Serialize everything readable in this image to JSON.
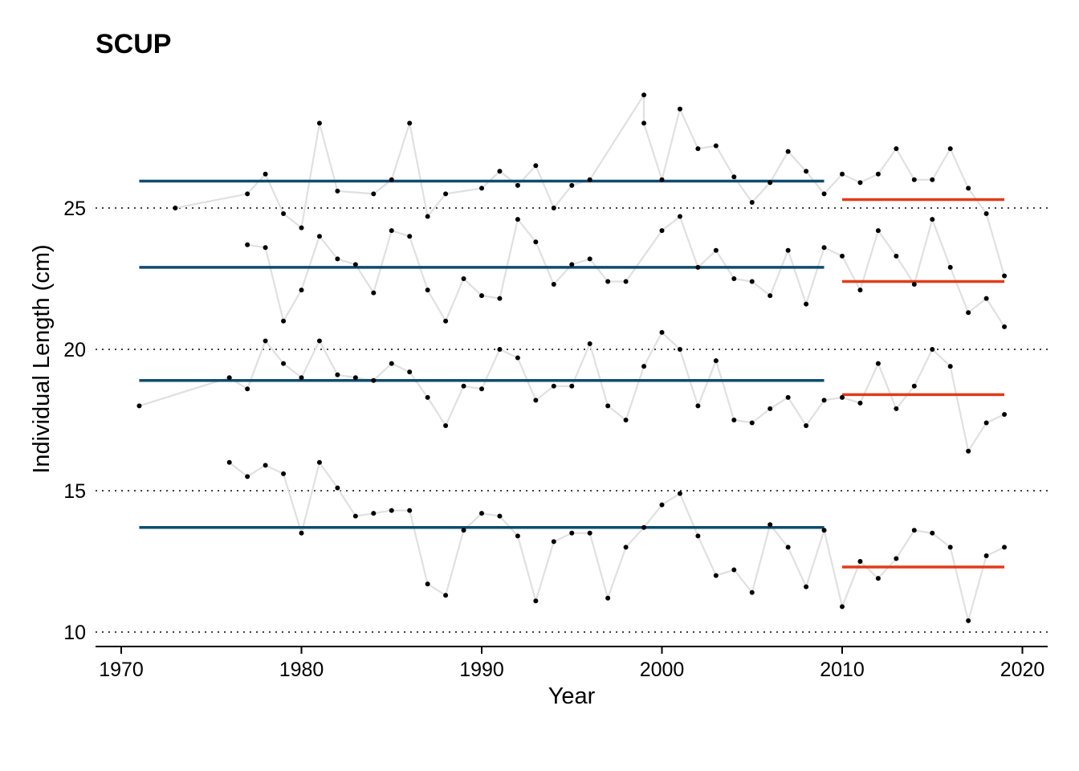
{
  "chart_data": {
    "type": "line",
    "title": "SCUP",
    "xlabel": "Year",
    "ylabel": "Individual Length (cm)",
    "xlim": [
      1968.5,
      2021.5
    ],
    "ylim": [
      9.5,
      29.5
    ],
    "x_ticks": [
      1970,
      1980,
      1990,
      2000,
      2010,
      2020
    ],
    "y_ticks": [
      10,
      15,
      20,
      25
    ],
    "grid": "horizontal dotted at y ticks",
    "colors": {
      "points": "#000000",
      "lines": "#e0e0e0",
      "early_mean": "#0f4c6e",
      "late_mean": "#e03c1b"
    },
    "series": [
      {
        "values": [
          [
            1973,
            25.0
          ],
          [
            1977,
            25.5
          ],
          [
            1978,
            26.2
          ],
          [
            1979,
            24.8
          ],
          [
            1980,
            24.3
          ],
          [
            1981,
            28.0
          ],
          [
            1982,
            25.6
          ],
          [
            1984,
            25.5
          ],
          [
            1985,
            26.0
          ],
          [
            1986,
            28.0
          ],
          [
            1987,
            24.7
          ],
          [
            1988,
            25.5
          ],
          [
            1990,
            25.7
          ],
          [
            1991,
            26.3
          ],
          [
            1992,
            25.8
          ],
          [
            1993,
            26.5
          ],
          [
            1994,
            25.0
          ],
          [
            1995,
            25.8
          ],
          [
            1996,
            26.0
          ],
          [
            1999,
            29.0
          ],
          [
            1999,
            28.0
          ],
          [
            2000,
            26.0
          ],
          [
            2001,
            28.5
          ],
          [
            2002,
            27.1
          ],
          [
            2003,
            27.2
          ],
          [
            2004,
            26.1
          ],
          [
            2005,
            25.2
          ],
          [
            2006,
            25.9
          ],
          [
            2007,
            27.0
          ],
          [
            2008,
            26.3
          ],
          [
            2009,
            25.5
          ],
          [
            2010,
            26.2
          ],
          [
            2011,
            25.9
          ],
          [
            2012,
            26.2
          ],
          [
            2013,
            27.1
          ],
          [
            2014,
            26.0
          ],
          [
            2015,
            26.0
          ],
          [
            2016,
            27.1
          ],
          [
            2017,
            25.7
          ],
          [
            2018,
            24.8
          ],
          [
            2019,
            22.6
          ]
        ],
        "means": [
          {
            "x_start": 1971,
            "x_end": 2009,
            "y": 25.95
          },
          {
            "x_start": 2010,
            "x_end": 2019,
            "y": 25.3
          }
        ]
      },
      {
        "values": [
          [
            1977,
            23.7
          ],
          [
            1978,
            23.6
          ],
          [
            1979,
            21.0
          ],
          [
            1980,
            22.1
          ],
          [
            1981,
            24.0
          ],
          [
            1982,
            23.2
          ],
          [
            1983,
            23.0
          ],
          [
            1984,
            22.0
          ],
          [
            1985,
            24.2
          ],
          [
            1986,
            24.0
          ],
          [
            1987,
            22.1
          ],
          [
            1988,
            21.0
          ],
          [
            1989,
            22.5
          ],
          [
            1990,
            21.9
          ],
          [
            1991,
            21.8
          ],
          [
            1992,
            24.6
          ],
          [
            1993,
            23.8
          ],
          [
            1994,
            22.3
          ],
          [
            1995,
            23.0
          ],
          [
            1996,
            23.2
          ],
          [
            1997,
            22.4
          ],
          [
            1998,
            22.4
          ],
          [
            2000,
            24.2
          ],
          [
            2001,
            24.7
          ],
          [
            2002,
            22.9
          ],
          [
            2003,
            23.5
          ],
          [
            2004,
            22.5
          ],
          [
            2005,
            22.4
          ],
          [
            2006,
            21.9
          ],
          [
            2007,
            23.5
          ],
          [
            2008,
            21.6
          ],
          [
            2009,
            23.6
          ],
          [
            2010,
            23.3
          ],
          [
            2011,
            22.1
          ],
          [
            2012,
            24.2
          ],
          [
            2013,
            23.3
          ],
          [
            2014,
            22.3
          ],
          [
            2015,
            24.6
          ],
          [
            2016,
            22.9
          ],
          [
            2017,
            21.3
          ],
          [
            2018,
            21.8
          ],
          [
            2019,
            20.8
          ]
        ],
        "means": [
          {
            "x_start": 1971,
            "x_end": 2009,
            "y": 22.9
          },
          {
            "x_start": 2010,
            "x_end": 2019,
            "y": 22.4
          }
        ]
      },
      {
        "values": [
          [
            1971,
            18.0
          ],
          [
            1976,
            19.0
          ],
          [
            1977,
            18.6
          ],
          [
            1978,
            20.3
          ],
          [
            1979,
            19.5
          ],
          [
            1980,
            19.0
          ],
          [
            1981,
            20.3
          ],
          [
            1982,
            19.1
          ],
          [
            1983,
            19.0
          ],
          [
            1984,
            18.9
          ],
          [
            1985,
            19.5
          ],
          [
            1986,
            19.2
          ],
          [
            1987,
            18.3
          ],
          [
            1988,
            17.3
          ],
          [
            1989,
            18.7
          ],
          [
            1990,
            18.6
          ],
          [
            1991,
            20.0
          ],
          [
            1992,
            19.7
          ],
          [
            1993,
            18.2
          ],
          [
            1994,
            18.7
          ],
          [
            1995,
            18.7
          ],
          [
            1996,
            20.2
          ],
          [
            1997,
            18.0
          ],
          [
            1998,
            17.5
          ],
          [
            1999,
            19.4
          ],
          [
            2000,
            20.6
          ],
          [
            2001,
            20.0
          ],
          [
            2002,
            18.0
          ],
          [
            2003,
            19.6
          ],
          [
            2004,
            17.5
          ],
          [
            2005,
            17.4
          ],
          [
            2006,
            17.9
          ],
          [
            2007,
            18.3
          ],
          [
            2008,
            17.3
          ],
          [
            2009,
            18.2
          ],
          [
            2010,
            18.3
          ],
          [
            2011,
            18.1
          ],
          [
            2012,
            19.5
          ],
          [
            2013,
            17.9
          ],
          [
            2014,
            18.7
          ],
          [
            2015,
            20.0
          ],
          [
            2016,
            19.4
          ],
          [
            2017,
            16.4
          ],
          [
            2018,
            17.4
          ],
          [
            2019,
            17.7
          ]
        ],
        "means": [
          {
            "x_start": 1971,
            "x_end": 2009,
            "y": 18.9
          },
          {
            "x_start": 2010,
            "x_end": 2019,
            "y": 18.4
          }
        ]
      },
      {
        "values": [
          [
            1976,
            16.0
          ],
          [
            1977,
            15.5
          ],
          [
            1978,
            15.9
          ],
          [
            1979,
            15.6
          ],
          [
            1980,
            13.5
          ],
          [
            1981,
            16.0
          ],
          [
            1982,
            15.1
          ],
          [
            1983,
            14.1
          ],
          [
            1984,
            14.2
          ],
          [
            1985,
            14.3
          ],
          [
            1986,
            14.3
          ],
          [
            1987,
            11.7
          ],
          [
            1988,
            11.3
          ],
          [
            1989,
            13.6
          ],
          [
            1990,
            14.2
          ],
          [
            1991,
            14.1
          ],
          [
            1992,
            13.4
          ],
          [
            1993,
            11.1
          ],
          [
            1994,
            13.2
          ],
          [
            1995,
            13.5
          ],
          [
            1996,
            13.5
          ],
          [
            1997,
            11.2
          ],
          [
            1998,
            13.0
          ],
          [
            1999,
            13.7
          ],
          [
            2000,
            14.5
          ],
          [
            2001,
            14.9
          ],
          [
            2002,
            13.4
          ],
          [
            2003,
            12.0
          ],
          [
            2004,
            12.2
          ],
          [
            2005,
            11.4
          ],
          [
            2006,
            13.8
          ],
          [
            2007,
            13.0
          ],
          [
            2008,
            11.6
          ],
          [
            2009,
            13.6
          ],
          [
            2010,
            10.9
          ],
          [
            2011,
            12.5
          ],
          [
            2012,
            11.9
          ],
          [
            2013,
            12.6
          ],
          [
            2014,
            13.6
          ],
          [
            2015,
            13.5
          ],
          [
            2016,
            13.0
          ],
          [
            2017,
            10.4
          ],
          [
            2018,
            12.7
          ],
          [
            2019,
            13.0
          ]
        ],
        "means": [
          {
            "x_start": 1971,
            "x_end": 2009,
            "y": 13.7
          },
          {
            "x_start": 2010,
            "x_end": 2019,
            "y": 12.3
          }
        ]
      }
    ]
  }
}
